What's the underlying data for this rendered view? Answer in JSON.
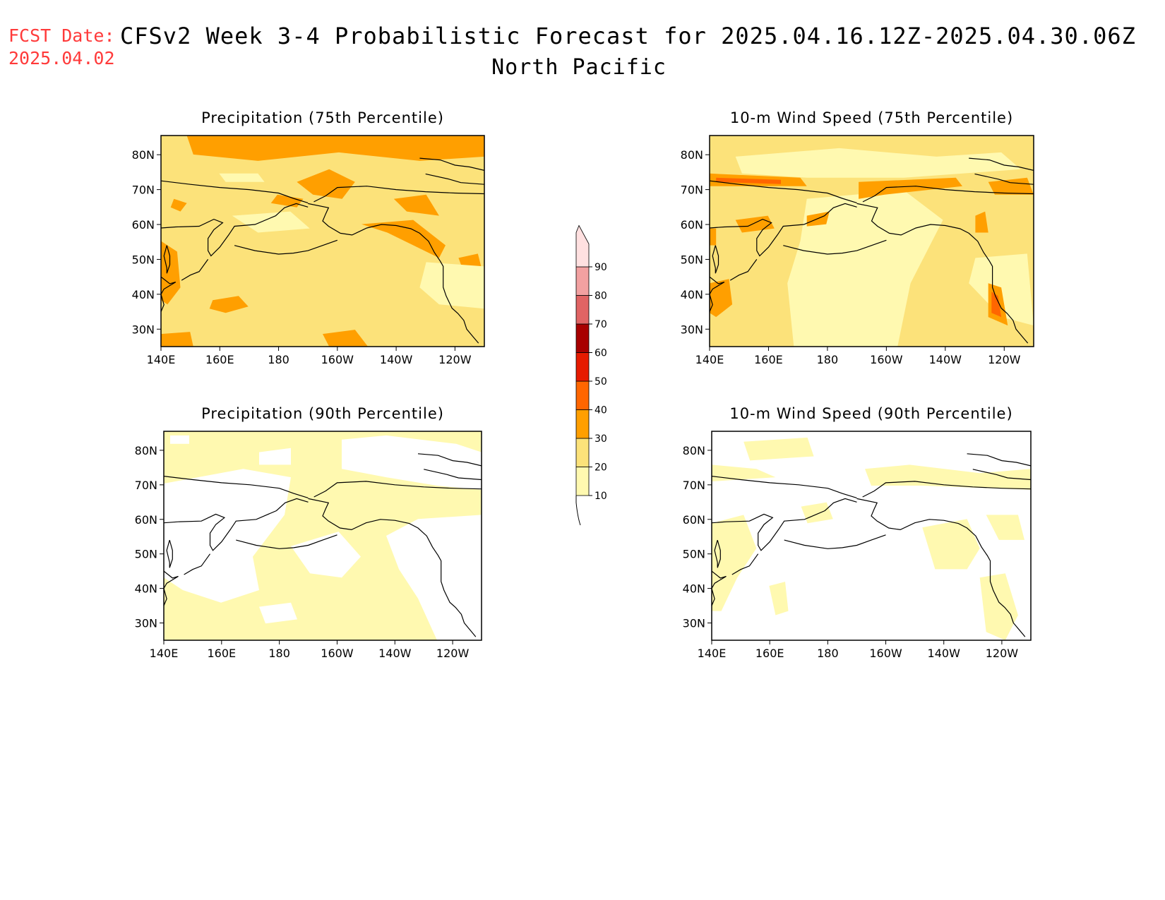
{
  "header": {
    "fcst_label": "FCST Date:",
    "fcst_date": "2025.04.02",
    "title": "CFSv2 Week 3-4 Probabilistic Forecast for 2025.04.16.12Z-2025.04.30.06Z",
    "region": "North Pacific"
  },
  "colors": {
    "c10": "#fff9b0",
    "c20": "#fce27a",
    "c30": "#ff9f00",
    "c40": "#ff6600",
    "c50": "#e61b00",
    "c60": "#a80000",
    "c70": "#e06464",
    "c80": "#f2a1a1",
    "c90": "#ffe0e0"
  },
  "axes": {
    "lat_labels": [
      "30N",
      "40N",
      "50N",
      "60N",
      "70N",
      "80N"
    ],
    "lon_labels": [
      "140E",
      "160E",
      "180",
      "160W",
      "140W",
      "120W"
    ]
  },
  "colorbar": {
    "labels": [
      "10",
      "20",
      "30",
      "40",
      "50",
      "60",
      "70",
      "80",
      "90"
    ]
  },
  "panels": [
    {
      "id": "precip75",
      "title": "Precipitation (75th Percentile)",
      "background": "c20",
      "patches": [
        {
          "c": "c30",
          "pts": [
            [
              0.08,
              0.0
            ],
            [
              1.0,
              0.0
            ],
            [
              1.0,
              0.1
            ],
            [
              0.8,
              0.12
            ],
            [
              0.55,
              0.08
            ],
            [
              0.3,
              0.12
            ],
            [
              0.1,
              0.09
            ]
          ]
        },
        {
          "c": "c30",
          "pts": [
            [
              0.42,
              0.22
            ],
            [
              0.52,
              0.16
            ],
            [
              0.6,
              0.22
            ],
            [
              0.56,
              0.3
            ],
            [
              0.47,
              0.28
            ]
          ]
        },
        {
          "c": "c30",
          "pts": [
            [
              0.72,
              0.3
            ],
            [
              0.82,
              0.28
            ],
            [
              0.86,
              0.38
            ],
            [
              0.76,
              0.36
            ]
          ]
        },
        {
          "c": "c30",
          "pts": [
            [
              0.62,
              0.42
            ],
            [
              0.78,
              0.4
            ],
            [
              0.88,
              0.52
            ],
            [
              0.86,
              0.58
            ],
            [
              0.7,
              0.46
            ]
          ]
        },
        {
          "c": "c30",
          "pts": [
            [
              0.36,
              0.28
            ],
            [
              0.44,
              0.3
            ],
            [
              0.42,
              0.34
            ],
            [
              0.34,
              0.32
            ]
          ]
        },
        {
          "c": "c30",
          "pts": [
            [
              0.0,
              0.5
            ],
            [
              0.05,
              0.55
            ],
            [
              0.06,
              0.72
            ],
            [
              0.02,
              0.8
            ],
            [
              0.0,
              0.78
            ]
          ]
        },
        {
          "c": "c30",
          "pts": [
            [
              0.16,
              0.78
            ],
            [
              0.24,
              0.76
            ],
            [
              0.27,
              0.81
            ],
            [
              0.2,
              0.84
            ],
            [
              0.15,
              0.82
            ]
          ]
        },
        {
          "c": "c30",
          "pts": [
            [
              0.5,
              0.94
            ],
            [
              0.6,
              0.92
            ],
            [
              0.64,
              1.0
            ],
            [
              0.52,
              1.0
            ]
          ]
        },
        {
          "c": "c30",
          "pts": [
            [
              0.0,
              0.94
            ],
            [
              0.09,
              0.93
            ],
            [
              0.1,
              1.0
            ],
            [
              0.0,
              1.0
            ]
          ]
        },
        {
          "c": "c30",
          "pts": [
            [
              0.04,
              0.3
            ],
            [
              0.08,
              0.32
            ],
            [
              0.06,
              0.36
            ],
            [
              0.03,
              0.34
            ]
          ]
        },
        {
          "c": "c30",
          "pts": [
            [
              0.92,
              0.58
            ],
            [
              0.98,
              0.56
            ],
            [
              0.99,
              0.62
            ],
            [
              0.93,
              0.62
            ]
          ]
        },
        {
          "c": "c10",
          "pts": [
            [
              0.82,
              0.6
            ],
            [
              1.0,
              0.62
            ],
            [
              1.0,
              0.82
            ],
            [
              0.86,
              0.8
            ],
            [
              0.8,
              0.72
            ]
          ]
        },
        {
          "c": "c10",
          "pts": [
            [
              0.22,
              0.38
            ],
            [
              0.4,
              0.36
            ],
            [
              0.46,
              0.44
            ],
            [
              0.3,
              0.46
            ]
          ]
        },
        {
          "c": "c10",
          "pts": [
            [
              0.18,
              0.18
            ],
            [
              0.3,
              0.18
            ],
            [
              0.32,
              0.22
            ],
            [
              0.2,
              0.22
            ]
          ]
        }
      ]
    },
    {
      "id": "wind75",
      "title": "10-m Wind Speed (75th Percentile)",
      "background": "c20",
      "patches": [
        {
          "c": "c10",
          "pts": [
            [
              0.3,
              0.3
            ],
            [
              0.6,
              0.26
            ],
            [
              0.72,
              0.4
            ],
            [
              0.62,
              0.7
            ],
            [
              0.58,
              1.0
            ],
            [
              0.26,
              1.0
            ],
            [
              0.24,
              0.7
            ],
            [
              0.28,
              0.5
            ]
          ]
        },
        {
          "c": "c10",
          "pts": [
            [
              0.08,
              0.1
            ],
            [
              0.4,
              0.06
            ],
            [
              0.7,
              0.1
            ],
            [
              0.9,
              0.08
            ],
            [
              0.96,
              0.16
            ],
            [
              0.6,
              0.2
            ],
            [
              0.3,
              0.2
            ],
            [
              0.1,
              0.18
            ]
          ]
        },
        {
          "c": "c10",
          "pts": [
            [
              0.82,
              0.58
            ],
            [
              0.98,
              0.56
            ],
            [
              1.0,
              0.9
            ],
            [
              0.9,
              0.86
            ],
            [
              0.8,
              0.7
            ]
          ]
        },
        {
          "c": "c30",
          "pts": [
            [
              0.0,
              0.18
            ],
            [
              0.28,
              0.2
            ],
            [
              0.3,
              0.24
            ],
            [
              0.0,
              0.24
            ]
          ]
        },
        {
          "c": "c40",
          "pts": [
            [
              0.02,
              0.2
            ],
            [
              0.22,
              0.21
            ],
            [
              0.22,
              0.23
            ],
            [
              0.02,
              0.22
            ]
          ]
        },
        {
          "c": "c30",
          "pts": [
            [
              0.46,
              0.22
            ],
            [
              0.76,
              0.2
            ],
            [
              0.78,
              0.24
            ],
            [
              0.54,
              0.28
            ],
            [
              0.46,
              0.3
            ]
          ]
        },
        {
          "c": "c30",
          "pts": [
            [
              0.86,
              0.22
            ],
            [
              0.98,
              0.2
            ],
            [
              1.0,
              0.28
            ],
            [
              0.88,
              0.28
            ]
          ]
        },
        {
          "c": "c30",
          "pts": [
            [
              0.82,
              0.38
            ],
            [
              0.85,
              0.36
            ],
            [
              0.86,
              0.46
            ],
            [
              0.82,
              0.46
            ]
          ]
        },
        {
          "c": "c30",
          "pts": [
            [
              0.86,
              0.7
            ],
            [
              0.9,
              0.72
            ],
            [
              0.92,
              0.9
            ],
            [
              0.86,
              0.86
            ]
          ]
        },
        {
          "c": "c40",
          "pts": [
            [
              0.87,
              0.74
            ],
            [
              0.89,
              0.76
            ],
            [
              0.9,
              0.86
            ],
            [
              0.87,
              0.84
            ]
          ]
        },
        {
          "c": "c30",
          "pts": [
            [
              0.0,
              0.7
            ],
            [
              0.06,
              0.68
            ],
            [
              0.07,
              0.8
            ],
            [
              0.02,
              0.86
            ],
            [
              0.0,
              0.84
            ]
          ]
        },
        {
          "c": "c30",
          "pts": [
            [
              0.08,
              0.4
            ],
            [
              0.18,
              0.38
            ],
            [
              0.2,
              0.44
            ],
            [
              0.1,
              0.46
            ]
          ]
        },
        {
          "c": "c30",
          "pts": [
            [
              0.3,
              0.38
            ],
            [
              0.37,
              0.36
            ],
            [
              0.36,
              0.42
            ],
            [
              0.3,
              0.43
            ]
          ]
        },
        {
          "c": "c30",
          "pts": [
            [
              0.0,
              0.44
            ],
            [
              0.02,
              0.44
            ],
            [
              0.02,
              0.52
            ],
            [
              0.0,
              0.52
            ]
          ]
        }
      ]
    },
    {
      "id": "precip90",
      "title": "Precipitation (90th Percentile)",
      "background": "c10",
      "patches": [
        {
          "c": "white",
          "pts": [
            [
              0.0,
              0.25
            ],
            [
              0.25,
              0.18
            ],
            [
              0.4,
              0.22
            ],
            [
              0.38,
              0.4
            ],
            [
              0.28,
              0.6
            ],
            [
              0.3,
              0.76
            ],
            [
              0.18,
              0.82
            ],
            [
              0.06,
              0.76
            ],
            [
              0.0,
              0.7
            ]
          ]
        },
        {
          "c": "white",
          "pts": [
            [
              0.4,
              0.55
            ],
            [
              0.55,
              0.48
            ],
            [
              0.62,
              0.6
            ],
            [
              0.56,
              0.7
            ],
            [
              0.46,
              0.68
            ]
          ]
        },
        {
          "c": "white",
          "pts": [
            [
              0.7,
              0.5
            ],
            [
              0.8,
              0.42
            ],
            [
              1.0,
              0.4
            ],
            [
              1.0,
              1.0
            ],
            [
              0.86,
              1.0
            ],
            [
              0.8,
              0.8
            ],
            [
              0.74,
              0.66
            ]
          ]
        },
        {
          "c": "white",
          "pts": [
            [
              0.56,
              0.04
            ],
            [
              0.7,
              0.02
            ],
            [
              0.92,
              0.06
            ],
            [
              1.0,
              0.1
            ],
            [
              1.0,
              0.28
            ],
            [
              0.86,
              0.26
            ],
            [
              0.7,
              0.22
            ],
            [
              0.56,
              0.18
            ]
          ]
        },
        {
          "c": "white",
          "pts": [
            [
              0.3,
              0.1
            ],
            [
              0.4,
              0.08
            ],
            [
              0.4,
              0.16
            ],
            [
              0.3,
              0.16
            ]
          ]
        },
        {
          "c": "white",
          "pts": [
            [
              0.3,
              0.84
            ],
            [
              0.4,
              0.82
            ],
            [
              0.42,
              0.9
            ],
            [
              0.32,
              0.92
            ]
          ]
        },
        {
          "c": "white",
          "pts": [
            [
              0.02,
              0.02
            ],
            [
              0.08,
              0.02
            ],
            [
              0.08,
              0.06
            ],
            [
              0.02,
              0.06
            ]
          ]
        }
      ]
    },
    {
      "id": "wind90",
      "title": "10-m Wind Speed (90th Percentile)",
      "background": "white",
      "patches": [
        {
          "c": "c10",
          "pts": [
            [
              0.1,
              0.05
            ],
            [
              0.3,
              0.03
            ],
            [
              0.32,
              0.12
            ],
            [
              0.12,
              0.14
            ]
          ]
        },
        {
          "c": "c10",
          "pts": [
            [
              0.0,
              0.16
            ],
            [
              0.14,
              0.18
            ],
            [
              0.2,
              0.22
            ],
            [
              0.0,
              0.24
            ]
          ]
        },
        {
          "c": "c10",
          "pts": [
            [
              0.48,
              0.18
            ],
            [
              0.62,
              0.16
            ],
            [
              0.84,
              0.2
            ],
            [
              1.0,
              0.18
            ],
            [
              1.0,
              0.28
            ],
            [
              0.66,
              0.26
            ],
            [
              0.5,
              0.26
            ]
          ]
        },
        {
          "c": "c10",
          "pts": [
            [
              0.0,
              0.44
            ],
            [
              0.1,
              0.4
            ],
            [
              0.14,
              0.56
            ],
            [
              0.08,
              0.7
            ],
            [
              0.03,
              0.86
            ],
            [
              0.0,
              0.86
            ]
          ]
        },
        {
          "c": "c10",
          "pts": [
            [
              0.66,
              0.46
            ],
            [
              0.8,
              0.42
            ],
            [
              0.84,
              0.56
            ],
            [
              0.8,
              0.66
            ],
            [
              0.7,
              0.66
            ]
          ]
        },
        {
          "c": "c10",
          "pts": [
            [
              0.84,
              0.7
            ],
            [
              0.92,
              0.68
            ],
            [
              0.96,
              0.88
            ],
            [
              0.92,
              1.0
            ],
            [
              0.86,
              0.96
            ]
          ]
        },
        {
          "c": "c10",
          "pts": [
            [
              0.18,
              0.74
            ],
            [
              0.23,
              0.72
            ],
            [
              0.24,
              0.86
            ],
            [
              0.2,
              0.88
            ]
          ]
        },
        {
          "c": "c10",
          "pts": [
            [
              0.86,
              0.4
            ],
            [
              0.96,
              0.4
            ],
            [
              0.98,
              0.52
            ],
            [
              0.9,
              0.52
            ]
          ]
        },
        {
          "c": "c10",
          "pts": [
            [
              0.28,
              0.36
            ],
            [
              0.36,
              0.34
            ],
            [
              0.38,
              0.42
            ],
            [
              0.3,
              0.44
            ]
          ]
        }
      ]
    }
  ]
}
